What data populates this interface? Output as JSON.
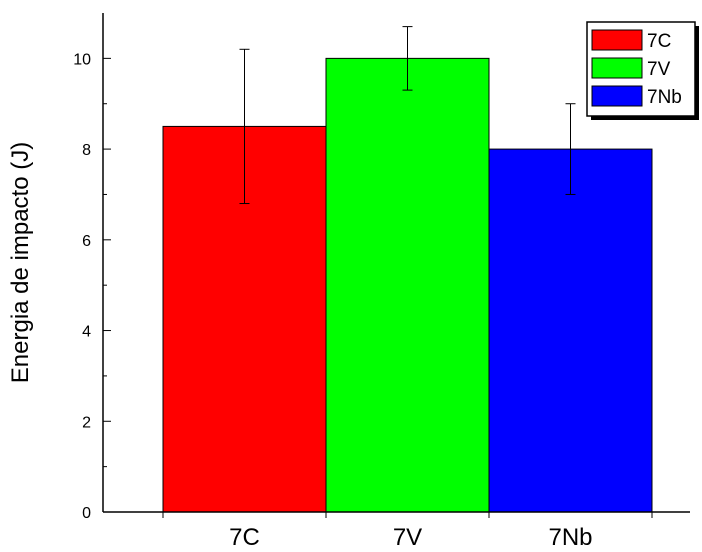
{
  "chart_data": {
    "type": "bar",
    "title": "",
    "xlabel": "",
    "ylabel": "Energia de impacto (J)",
    "ylim": [
      0,
      11
    ],
    "yticks": [
      0,
      2,
      4,
      6,
      8,
      10
    ],
    "categories": [
      "7C",
      "7V",
      "7Nb"
    ],
    "values": [
      8.5,
      10.0,
      8.0
    ],
    "error_low": [
      6.8,
      9.3,
      7.0
    ],
    "error_high": [
      10.2,
      10.7,
      9.0
    ],
    "colors": [
      "#ff0000",
      "#00ff00",
      "#0000ff"
    ],
    "legend": {
      "position": "top-right",
      "entries": [
        "7C",
        "7V",
        "7Nb"
      ]
    },
    "grid": false
  }
}
